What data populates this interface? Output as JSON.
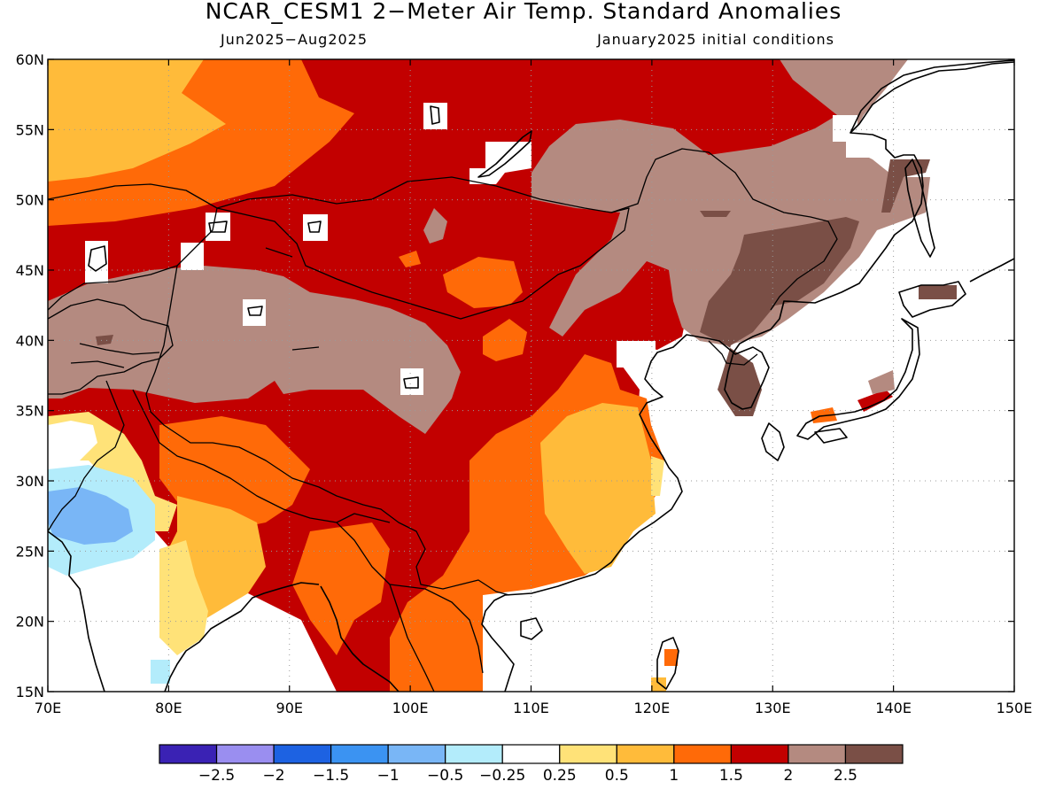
{
  "title": "NCAR_CESM1 2−Meter Air Temp. Standard Anomalies",
  "subtitle_left": "Jun2025−Aug2025",
  "subtitle_right": "January2025 initial conditions",
  "map": {
    "lon_range": [
      70,
      150
    ],
    "lat_range": [
      15,
      60
    ],
    "lon_ticks": [
      {
        "value": 70,
        "label": "70E"
      },
      {
        "value": 80,
        "label": "80E"
      },
      {
        "value": 90,
        "label": "90E"
      },
      {
        "value": 100,
        "label": "100E"
      },
      {
        "value": 110,
        "label": "110E"
      },
      {
        "value": 120,
        "label": "120E"
      },
      {
        "value": 130,
        "label": "130E"
      },
      {
        "value": 140,
        "label": "140E"
      },
      {
        "value": 150,
        "label": "150E"
      }
    ],
    "lat_ticks": [
      {
        "value": 15,
        "label": "15N"
      },
      {
        "value": 20,
        "label": "20N"
      },
      {
        "value": 25,
        "label": "25N"
      },
      {
        "value": 30,
        "label": "30N"
      },
      {
        "value": 35,
        "label": "35N"
      },
      {
        "value": 40,
        "label": "40N"
      },
      {
        "value": 45,
        "label": "45N"
      },
      {
        "value": 50,
        "label": "50N"
      },
      {
        "value": 55,
        "label": "55N"
      },
      {
        "value": 60,
        "label": "60N"
      }
    ],
    "gridlines": "dotted"
  },
  "colorbar": {
    "bins": [
      {
        "color": "#3a22b4"
      },
      {
        "color": "#9a8ef0"
      },
      {
        "color": "#1d62e2"
      },
      {
        "color": "#3b93f2"
      },
      {
        "color": "#79b6f6"
      },
      {
        "color": "#b3ecfb"
      },
      {
        "color": "#ffffff"
      },
      {
        "color": "#ffe278"
      },
      {
        "color": "#ffbb3a"
      },
      {
        "color": "#ff6a08"
      },
      {
        "color": "#c20000"
      },
      {
        "color": "#b48a80"
      },
      {
        "color": "#7a4f46"
      }
    ],
    "labels": [
      "−2.5",
      "−2",
      "−1.5",
      "−1",
      "−0.5",
      "−0.25",
      "0.25",
      "0.5",
      "1",
      "1.5",
      "2",
      "2.5"
    ]
  }
}
